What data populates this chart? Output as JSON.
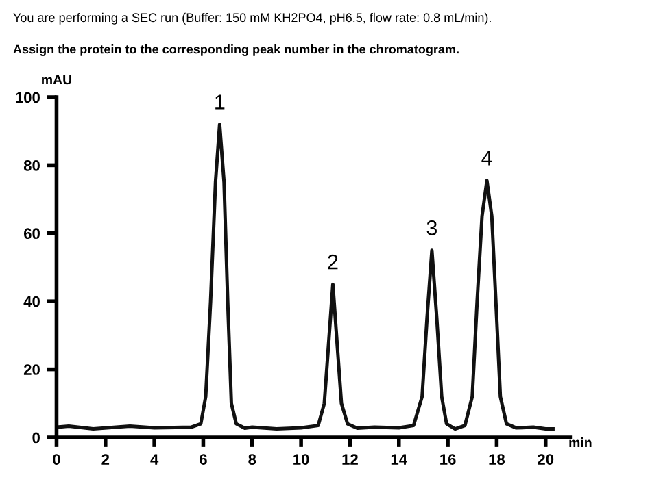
{
  "chart_data": {
    "type": "line",
    "title": "You are performing a SEC run (Buffer: 150 mM KH2PO4, pH6.5, flow rate: 0.8 mL/min).",
    "subtitle": "Assign the protein to the corresponding peak number in the chromatogram.",
    "xlabel": "min",
    "ylabel": "mAU",
    "series": [
      {
        "color": "#111111",
        "x": [
          0,
          0.5,
          1.5,
          3,
          4,
          5.5,
          5.9,
          6.1,
          6.3,
          6.5,
          6.67,
          6.85,
          7.0,
          7.15,
          7.35,
          7.7,
          8,
          9,
          10,
          10.7,
          10.95,
          11.1,
          11.3,
          11.5,
          11.65,
          11.9,
          12.3,
          13,
          14,
          14.6,
          14.95,
          15.15,
          15.35,
          15.55,
          15.75,
          15.95,
          16.3,
          16.7,
          17.0,
          17.2,
          17.4,
          17.6,
          17.8,
          18.0,
          18.15,
          18.4,
          18.8,
          19.5,
          20,
          20.3
        ],
        "values": [
          3,
          3.3,
          2.5,
          3.3,
          2.8,
          3,
          4,
          12,
          40,
          75,
          92,
          75,
          40,
          10,
          4,
          2.7,
          3,
          2.5,
          2.8,
          3.5,
          10,
          25,
          45,
          25,
          10,
          4,
          2.7,
          3,
          2.8,
          3.5,
          12,
          35,
          55,
          35,
          12,
          4,
          2.5,
          3.5,
          12,
          40,
          65,
          75.5,
          65,
          35,
          12,
          4,
          2.8,
          3,
          2.5,
          2.5
        ]
      }
    ],
    "annotations": [
      {
        "text": "1",
        "x": 6.67,
        "y": 92
      },
      {
        "text": "2",
        "x": 11.3,
        "y": 45
      },
      {
        "text": "3",
        "x": 15.35,
        "y": 55
      },
      {
        "text": "4",
        "x": 17.6,
        "y": 75.5
      }
    ],
    "xlim": [
      0,
      21
    ],
    "ylim": [
      0,
      100
    ],
    "xticks": [
      0,
      2,
      4,
      6,
      8,
      10,
      12,
      14,
      16,
      18,
      20
    ],
    "yticks": [
      0,
      20,
      40,
      60,
      80,
      100
    ],
    "grid": false,
    "legend": false,
    "marker": "none",
    "line_style": "solid"
  }
}
